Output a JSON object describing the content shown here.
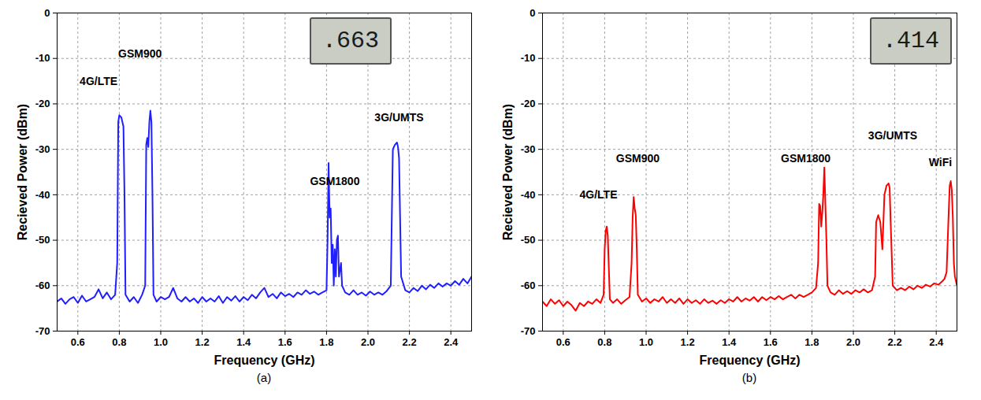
{
  "chart_data": [
    {
      "type": "line",
      "panel_label": "(a)",
      "xlabel": "Frequency (GHz)",
      "ylabel": "Recieved Power (dBm)",
      "color": "#1f1fff",
      "grid": true,
      "xlim": [
        0.5,
        2.5
      ],
      "xticks": [
        0.6,
        0.8,
        {
          "value": 1,
          "label": "1.0"
        },
        1.2,
        1.4,
        1.6,
        1.8,
        {
          "value": 2,
          "label": "2.0"
        },
        2.2,
        2.4
      ],
      "ylim": [
        -70,
        0
      ],
      "yticks": [
        -70,
        -60,
        -50,
        -40,
        -30,
        -20,
        -10,
        0
      ],
      "inset_text": ".663",
      "annotations": [
        {
          "text": "4G/LTE",
          "x": 0.7,
          "y": -15
        },
        {
          "text": "GSM900",
          "x": 0.9,
          "y": -9
        },
        {
          "text": "GSM1800",
          "x": 1.84,
          "y": -37
        },
        {
          "text": "3G/UMTS",
          "x": 2.15,
          "y": -23
        }
      ],
      "x": [
        0.5,
        0.52,
        0.54,
        0.56,
        0.58,
        0.6,
        0.62,
        0.64,
        0.66,
        0.68,
        0.7,
        0.72,
        0.74,
        0.76,
        0.78,
        0.79,
        0.795,
        0.8,
        0.81,
        0.82,
        0.825,
        0.83,
        0.85,
        0.87,
        0.89,
        0.91,
        0.925,
        0.93,
        0.935,
        0.94,
        0.945,
        0.95,
        0.955,
        0.96,
        0.965,
        0.98,
        1.0,
        1.02,
        1.04,
        1.06,
        1.08,
        1.1,
        1.12,
        1.14,
        1.16,
        1.18,
        1.2,
        1.22,
        1.24,
        1.26,
        1.28,
        1.3,
        1.32,
        1.34,
        1.36,
        1.38,
        1.4,
        1.42,
        1.44,
        1.46,
        1.48,
        1.5,
        1.52,
        1.54,
        1.56,
        1.58,
        1.6,
        1.62,
        1.64,
        1.66,
        1.68,
        1.7,
        1.72,
        1.74,
        1.76,
        1.78,
        1.8,
        1.805,
        1.81,
        1.815,
        1.82,
        1.825,
        1.83,
        1.835,
        1.84,
        1.845,
        1.85,
        1.855,
        1.86,
        1.87,
        1.875,
        1.89,
        1.91,
        1.93,
        1.95,
        1.97,
        1.99,
        2.01,
        2.03,
        2.05,
        2.07,
        2.09,
        2.11,
        2.115,
        2.12,
        2.13,
        2.14,
        2.145,
        2.15,
        2.155,
        2.16,
        2.18,
        2.2,
        2.22,
        2.24,
        2.26,
        2.28,
        2.3,
        2.32,
        2.34,
        2.36,
        2.38,
        2.4,
        2.42,
        2.44,
        2.46,
        2.48,
        2.5
      ],
      "values": [
        -63.5,
        -62.8,
        -64,
        -63,
        -62.5,
        -63.8,
        -62.2,
        -63.5,
        -63,
        -62.5,
        -60.8,
        -62.8,
        -61.5,
        -63,
        -62,
        -55,
        -24,
        -22.5,
        -23,
        -25,
        -40,
        -62,
        -63.5,
        -62.5,
        -63.8,
        -62,
        -60,
        -29,
        -27.5,
        -29.5,
        -24,
        -21.5,
        -24,
        -40,
        -62,
        -63.5,
        -62.5,
        -63,
        -62.5,
        -60.5,
        -62.8,
        -63.5,
        -62.5,
        -63.5,
        -62.8,
        -63.8,
        -62.5,
        -63.5,
        -62.8,
        -63.5,
        -62.3,
        -63.8,
        -62.5,
        -63.3,
        -62.3,
        -63.5,
        -62.5,
        -63.2,
        -62,
        -62.8,
        -61.5,
        -60.5,
        -62.5,
        -61.8,
        -62.8,
        -61.5,
        -62.3,
        -61.8,
        -62.5,
        -61.5,
        -62,
        -61,
        -61.8,
        -61.3,
        -62,
        -61.5,
        -61,
        -50,
        -33,
        -45,
        -43,
        -55,
        -51,
        -60,
        -52,
        -58,
        -50,
        -49,
        -58,
        -55,
        -60,
        -61.5,
        -62,
        -61,
        -62,
        -61.5,
        -62.2,
        -61.3,
        -62,
        -61.5,
        -62,
        -61.2,
        -60,
        -45,
        -30,
        -29,
        -28.5,
        -29.5,
        -32,
        -45,
        -58,
        -61,
        -61.5,
        -60.5,
        -61.2,
        -60,
        -60.8,
        -59.8,
        -60.5,
        -59.5,
        -60.2,
        -59.5,
        -60,
        -59,
        -59.8,
        -58.5,
        -59.5,
        -58
      ]
    },
    {
      "type": "line",
      "panel_label": "(b)",
      "xlabel": "Frequency (GHz)",
      "ylabel": "Recieved Power (dBm)",
      "color": "#ff0000",
      "grid": true,
      "xlim": [
        0.5,
        2.5
      ],
      "xticks": [
        0.6,
        0.8,
        {
          "value": 1,
          "label": "1.0"
        },
        1.2,
        1.4,
        1.6,
        1.8,
        {
          "value": 2,
          "label": "2.0"
        },
        2.2,
        2.4
      ],
      "ylim": [
        -70,
        0
      ],
      "yticks": [
        -70,
        -60,
        -50,
        -40,
        -30,
        -20,
        -10,
        0
      ],
      "inset_text": ".414",
      "annotations": [
        {
          "text": "4G/LTE",
          "x": 0.77,
          "y": -40
        },
        {
          "text": "GSM900",
          "x": 0.96,
          "y": -32
        },
        {
          "text": "GSM1800",
          "x": 1.77,
          "y": -32
        },
        {
          "text": "3G/UMTS",
          "x": 2.19,
          "y": -27
        },
        {
          "text": "WiFi",
          "x": 2.42,
          "y": -33
        }
      ],
      "x": [
        0.5,
        0.52,
        0.54,
        0.56,
        0.58,
        0.6,
        0.62,
        0.64,
        0.66,
        0.68,
        0.7,
        0.72,
        0.74,
        0.76,
        0.78,
        0.795,
        0.8,
        0.805,
        0.81,
        0.815,
        0.82,
        0.825,
        0.84,
        0.86,
        0.88,
        0.9,
        0.92,
        0.93,
        0.935,
        0.94,
        0.945,
        0.95,
        0.955,
        0.96,
        0.98,
        1.0,
        1.02,
        1.04,
        1.06,
        1.08,
        1.1,
        1.12,
        1.14,
        1.16,
        1.18,
        1.2,
        1.22,
        1.24,
        1.26,
        1.28,
        1.3,
        1.32,
        1.34,
        1.36,
        1.38,
        1.4,
        1.42,
        1.44,
        1.46,
        1.48,
        1.5,
        1.52,
        1.54,
        1.56,
        1.58,
        1.6,
        1.62,
        1.64,
        1.66,
        1.68,
        1.7,
        1.72,
        1.74,
        1.76,
        1.78,
        1.8,
        1.82,
        1.83,
        1.835,
        1.84,
        1.845,
        1.85,
        1.855,
        1.86,
        1.865,
        1.87,
        1.875,
        1.89,
        1.91,
        1.93,
        1.95,
        1.97,
        1.99,
        2.01,
        2.03,
        2.05,
        2.07,
        2.09,
        2.105,
        2.11,
        2.12,
        2.13,
        2.14,
        2.15,
        2.16,
        2.17,
        2.175,
        2.18,
        2.19,
        2.21,
        2.23,
        2.25,
        2.27,
        2.29,
        2.31,
        2.33,
        2.35,
        2.37,
        2.39,
        2.41,
        2.43,
        2.44,
        2.45,
        2.46,
        2.465,
        2.47,
        2.475,
        2.48,
        2.485,
        2.49,
        2.5
      ],
      "values": [
        -63.5,
        -64.5,
        -63,
        -64,
        -63.2,
        -64.5,
        -63.5,
        -64.3,
        -65.5,
        -63.8,
        -64.5,
        -63.5,
        -64,
        -63,
        -63.8,
        -62,
        -52,
        -48,
        -47,
        -49,
        -56,
        -63,
        -63.8,
        -63,
        -64,
        -63.2,
        -62.5,
        -55,
        -45,
        -40.5,
        -43,
        -44.5,
        -52,
        -62,
        -63.5,
        -62.8,
        -63.8,
        -63,
        -63.5,
        -62.5,
        -63.8,
        -63,
        -63.8,
        -62.8,
        -64,
        -63,
        -63.8,
        -63.2,
        -64,
        -63,
        -63.8,
        -63.3,
        -64,
        -63.2,
        -63.8,
        -63,
        -63.5,
        -62.5,
        -63.5,
        -62.8,
        -63.3,
        -62.5,
        -63.5,
        -62.5,
        -63.2,
        -62.5,
        -63,
        -62.3,
        -63,
        -62.5,
        -62,
        -62.8,
        -62,
        -62.5,
        -62,
        -61.5,
        -60.5,
        -55,
        -42,
        -42.5,
        -47,
        -44,
        -40,
        -34,
        -42,
        -50,
        -60,
        -61.5,
        -62,
        -61,
        -61.8,
        -61.2,
        -61.8,
        -61,
        -61.5,
        -60.8,
        -61.5,
        -61,
        -58,
        -46,
        -44.5,
        -46,
        -52,
        -40,
        -38,
        -37.5,
        -38.5,
        -46,
        -60,
        -61,
        -60.5,
        -61,
        -60.2,
        -60.8,
        -60,
        -60.5,
        -59.8,
        -60.2,
        -59.5,
        -59.8,
        -59,
        -58.5,
        -57,
        -44,
        -38,
        -37,
        -39,
        -45,
        -55,
        -58,
        -60
      ]
    }
  ]
}
